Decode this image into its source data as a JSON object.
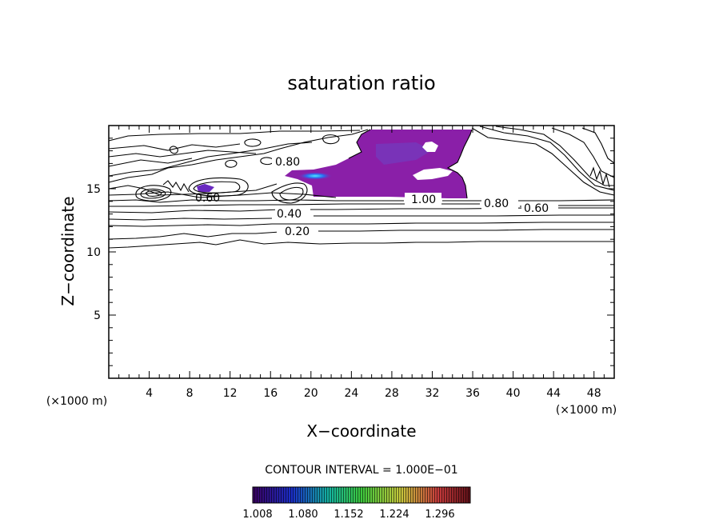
{
  "chart_data": {
    "type": "contour",
    "title": "saturation ratio",
    "xlabel": "X−coordinate",
    "ylabel": "Z−coordinate",
    "x_unit": "(×1000 m)",
    "y_unit": "(×1000 m)",
    "xlim": [
      0,
      50
    ],
    "ylim": [
      0,
      20
    ],
    "x_ticks": [
      "4",
      "8",
      "12",
      "16",
      "20",
      "24",
      "28",
      "32",
      "36",
      "40",
      "44",
      "48"
    ],
    "y_ticks": [
      "5",
      "10",
      "15"
    ],
    "contour_interval": "CONTOUR INTERVAL = 1.000E−01",
    "contour_labels": [
      {
        "text": "0.20",
        "x": 19,
        "z": 11.6
      },
      {
        "text": "0.40",
        "x": 16.8,
        "z": 13.1
      },
      {
        "text": "0.60",
        "x": 9.6,
        "z": 14.3
      },
      {
        "text": "0.80",
        "x": 18.5,
        "z": 17.1
      },
      {
        "text": "1.00",
        "x": 30.6,
        "z": 14.2
      },
      {
        "text": "0.80",
        "x": 39,
        "z": 13.8
      },
      {
        "text": "0.60",
        "x": 43,
        "z": 13.4
      }
    ],
    "filled_region": {
      "level": "> 1.00",
      "x_range": [
        18,
        36
      ],
      "z_range": [
        14,
        19.5
      ],
      "color": "#8a1fa8"
    },
    "colorbar": {
      "ticks": [
        "1.008",
        "1.080",
        "1.152",
        "1.224",
        "1.296"
      ],
      "colors": [
        "#3a0060",
        "#1a2ec8",
        "#14b4a0",
        "#3cc83c",
        "#c8c83c",
        "#c83c3c",
        "#601018"
      ]
    }
  }
}
